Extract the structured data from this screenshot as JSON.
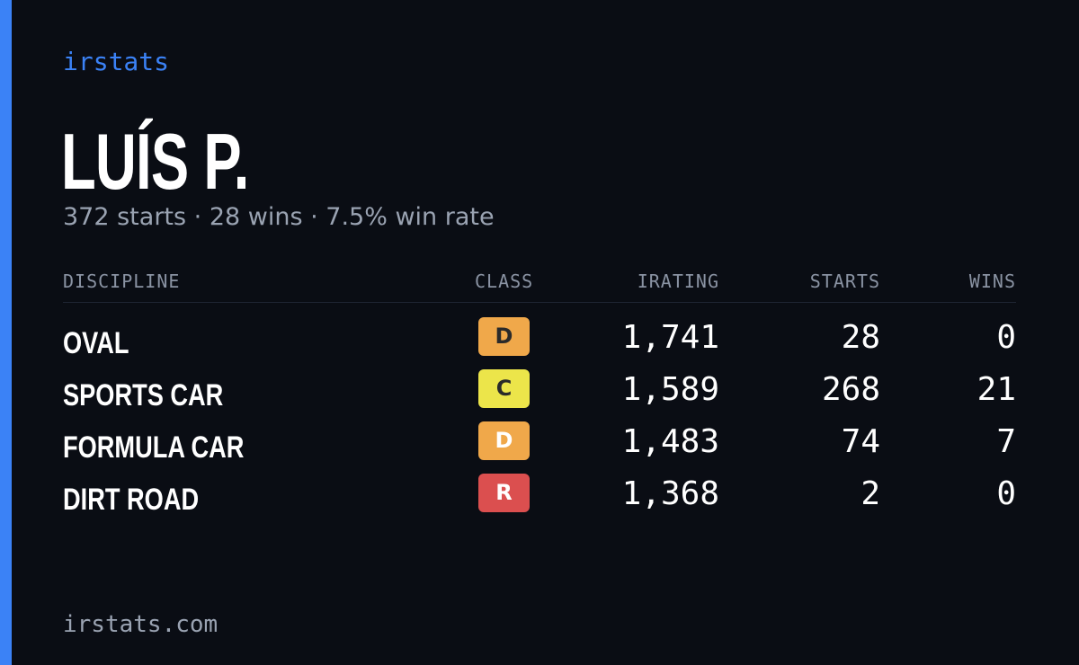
{
  "brand": "irstats",
  "player": {
    "name": "LUÍS P.",
    "summary": "372 starts · 28 wins · 7.5% win rate"
  },
  "table": {
    "headers": {
      "discipline": "DISCIPLINE",
      "class": "CLASS",
      "irating": "IRATING",
      "starts": "STARTS",
      "wins": "WINS"
    },
    "rows": [
      {
        "discipline": "OVAL",
        "class": "D",
        "class_color": "#f0a84a",
        "irating": "1,741",
        "starts": "28",
        "wins": "0"
      },
      {
        "discipline": "SPORTS CAR",
        "class": "C",
        "class_color": "#ece54a",
        "irating": "1,589",
        "starts": "268",
        "wins": "21"
      },
      {
        "discipline": "FORMULA CAR",
        "class": "D",
        "class_color": "#f0a84a",
        "irating": "1,483",
        "starts": "74",
        "wins": "7"
      },
      {
        "discipline": "DIRT ROAD",
        "class": "R",
        "class_color": "#db4f4f",
        "irating": "1,368",
        "starts": "2",
        "wins": "0"
      }
    ]
  },
  "footer": "irstats.com",
  "colors": {
    "background": "#0a0d14",
    "accent": "#3b82f6",
    "muted_text": "#9aa3b2",
    "badge_text_dark": "#2a2a2a",
    "badge_text_light": "#ffffff"
  }
}
